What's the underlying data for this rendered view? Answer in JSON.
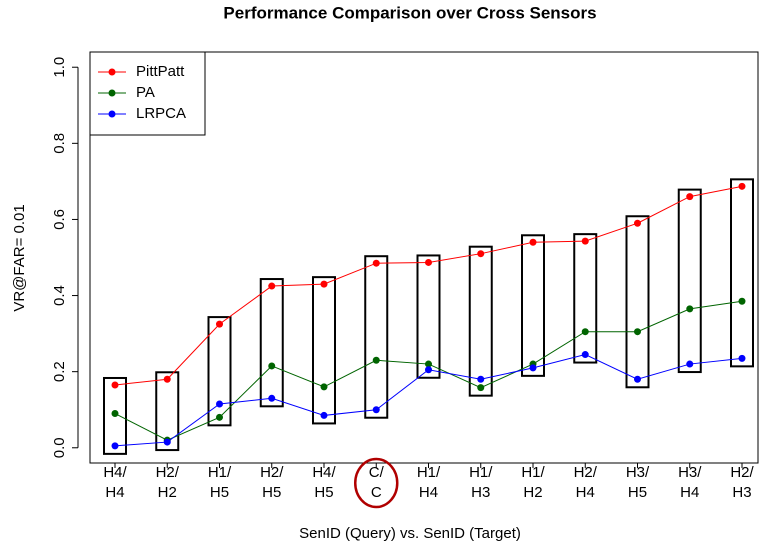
{
  "chart_data": {
    "type": "line",
    "title": "Performance Comparison over Cross Sensors",
    "x_label": "SenID (Query) vs. SenID (Target)",
    "y_label": "VR@FAR= 0.01",
    "categories": [
      [
        "H4/",
        "H4"
      ],
      [
        "H2/",
        "H2"
      ],
      [
        "H1/",
        "H5"
      ],
      [
        "H2/",
        "H5"
      ],
      [
        "H4/",
        "H5"
      ],
      [
        "C/",
        "C"
      ],
      [
        "H1/",
        "H4"
      ],
      [
        "H1/",
        "H3"
      ],
      [
        "H1/",
        "H2"
      ],
      [
        "H2/",
        "H4"
      ],
      [
        "H3/",
        "H5"
      ],
      [
        "H3/",
        "H4"
      ],
      [
        "H2/",
        "H3"
      ]
    ],
    "series": [
      {
        "name": "PittPatt",
        "color": "#ff0000",
        "values": [
          0.165,
          0.18,
          0.325,
          0.425,
          0.43,
          0.485,
          0.487,
          0.51,
          0.54,
          0.543,
          0.59,
          0.66,
          0.687
        ]
      },
      {
        "name": "PA",
        "color": "#006400",
        "values": [
          0.09,
          0.02,
          0.08,
          0.215,
          0.16,
          0.23,
          0.22,
          0.158,
          0.22,
          0.305,
          0.305,
          0.365,
          0.385
        ]
      },
      {
        "name": "LRPCA",
        "color": "#0000ff",
        "values": [
          0.005,
          0.015,
          0.115,
          0.13,
          0.085,
          0.1,
          0.205,
          0.18,
          0.21,
          0.245,
          0.18,
          0.22,
          0.235
        ]
      }
    ],
    "ylim": [
      -0.04,
      1.04
    ],
    "yticks": [
      {
        "value": 0,
        "label": "0.0"
      },
      0.2,
      0.4,
      0.6,
      0.8,
      {
        "value": 1,
        "label": "1.0"
      }
    ],
    "legend": "top-left",
    "highlight_category": 5
  }
}
